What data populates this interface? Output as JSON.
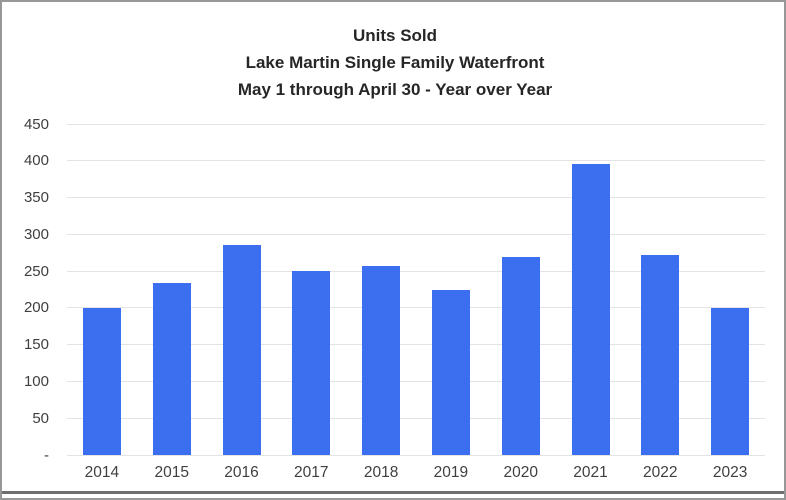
{
  "window": {
    "background_color": "#ffffff",
    "border_color": "#979797",
    "bottom_rule_color": "#6e6e6e"
  },
  "chart_data": {
    "type": "bar",
    "title_lines": [
      "Units Sold",
      "Lake Martin Single Family Waterfront",
      "May 1 through April 30 - Year over Year"
    ],
    "categories": [
      "2014",
      "2015",
      "2016",
      "2017",
      "2018",
      "2019",
      "2020",
      "2021",
      "2022",
      "2023"
    ],
    "values": [
      200,
      234,
      285,
      250,
      257,
      225,
      269,
      396,
      272,
      200
    ],
    "xlabel": "",
    "ylabel": "",
    "ylim": [
      0,
      450
    ],
    "ytick_step": 50,
    "ytick_labels": [
      "-",
      "50",
      "100",
      "150",
      "200",
      "250",
      "300",
      "350",
      "400",
      "450"
    ],
    "grid": true,
    "legend": false,
    "bar_color": "#3b6ff0",
    "gridline_color": "#e3e3e3",
    "title_color": "#262626",
    "tick_label_color": "#3f3f3f"
  }
}
